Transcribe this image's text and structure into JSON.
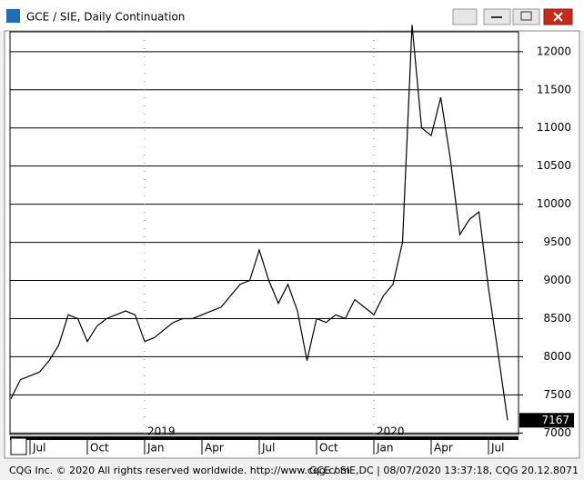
{
  "window": {
    "title": "GCE / SIE, Daily Continuation"
  },
  "footer": {
    "left": "CQG Inc. © 2020 All rights reserved worldwide. http://www.cqg.com",
    "right": "GCE / SIE,DC | 08/07/2020 13:37:18, CQG 20.12.8071"
  },
  "chart_data": {
    "type": "line",
    "categories": [
      null,
      null,
      "Jul",
      null,
      null,
      null,
      null,
      null,
      "Oct",
      null,
      null,
      null,
      null,
      null,
      "Jan",
      null,
      null,
      null,
      null,
      null,
      "Apr",
      null,
      null,
      null,
      null,
      null,
      "Jul",
      null,
      null,
      null,
      null,
      null,
      "Oct",
      null,
      null,
      null,
      null,
      null,
      "Jan",
      null,
      null,
      null,
      null,
      null,
      "Apr",
      null,
      null,
      null,
      null,
      null,
      "Jul",
      null,
      null
    ],
    "year_labels": [
      "2019",
      "2020"
    ],
    "series": [
      {
        "name": "GCE / SIE",
        "color": "#000000",
        "values": [
          7450,
          7700,
          7750,
          7800,
          7950,
          8150,
          8550,
          8500,
          8200,
          8400,
          8500,
          8550,
          8600,
          8550,
          8200,
          8250,
          8350,
          8450,
          8500,
          8500,
          8550,
          8600,
          8650,
          8800,
          8950,
          9000,
          9400,
          9000,
          8700,
          8950,
          8600,
          7950,
          8500,
          8450,
          8550,
          8500,
          8750,
          8650,
          8550,
          8800,
          8950,
          9500,
          12350,
          11000,
          10900,
          11400,
          10600,
          9600,
          9800,
          9900,
          8900,
          8050,
          7167
        ]
      }
    ],
    "ylim": [
      6980,
      12260
    ],
    "yticks": [
      7000,
      7500,
      8000,
      8500,
      9000,
      9500,
      10000,
      10500,
      11000,
      11500,
      12000
    ],
    "grid": true
  }
}
